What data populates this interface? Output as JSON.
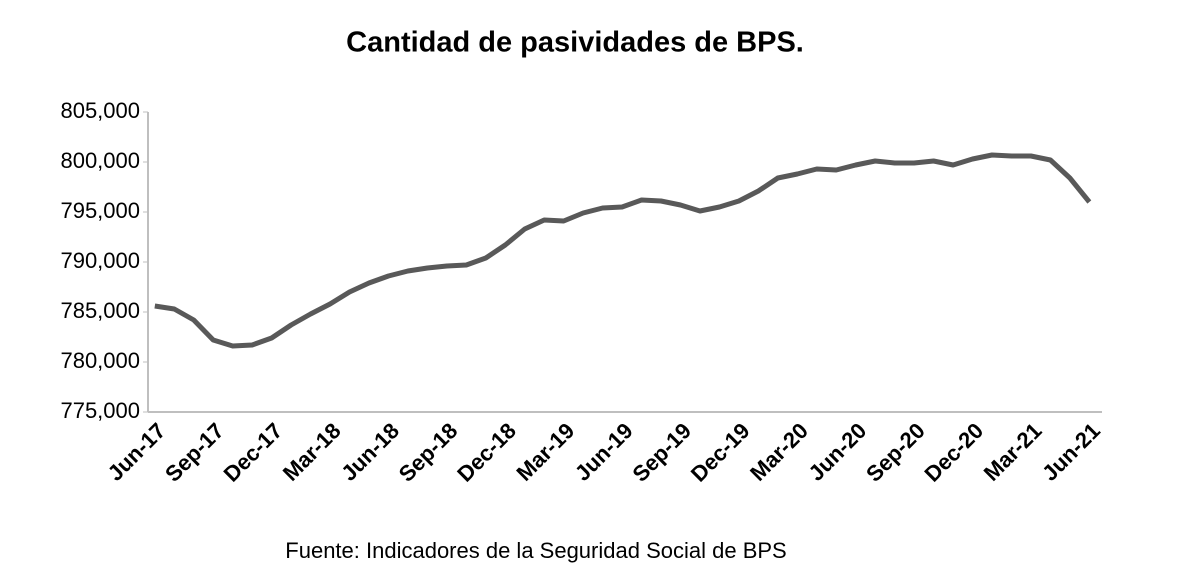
{
  "chart_data": {
    "type": "line",
    "title": "Cantidad de pasividades de BPS.",
    "source": "Fuente: Indicadores de la Seguridad Social de BPS",
    "categories": [
      "Jun-17",
      null,
      null,
      "Sep-17",
      null,
      null,
      "Dec-17",
      null,
      null,
      "Mar-18",
      null,
      null,
      "Jun-18",
      null,
      null,
      "Sep-18",
      null,
      null,
      "Dec-18",
      null,
      null,
      "Mar-19",
      null,
      null,
      "Jun-19",
      null,
      null,
      "Sep-19",
      null,
      null,
      "Dec-19",
      null,
      null,
      "Mar-20",
      null,
      null,
      "Jun-20",
      null,
      null,
      "Sep-20",
      null,
      null,
      "Dec-20",
      null,
      null,
      "Mar-21",
      null,
      null,
      "Jun-21"
    ],
    "series": [
      {
        "name": "Cantidad de pasividades",
        "color": "#595959",
        "values": [
          785600,
          785300,
          784200,
          782200,
          781600,
          781700,
          782400,
          783700,
          784800,
          785800,
          787000,
          787900,
          788600,
          789100,
          789400,
          789600,
          789700,
          790400,
          791700,
          793300,
          794200,
          794100,
          794900,
          795400,
          795500,
          796200,
          796100,
          795700,
          795100,
          795500,
          796100,
          797100,
          798400,
          798800,
          799300,
          799200,
          799700,
          800100,
          799900,
          799900,
          800100,
          799700,
          800300,
          800700,
          800600,
          800600,
          800200,
          798400,
          796000
        ]
      }
    ],
    "ylim": [
      775000,
      805000
    ],
    "yticks": [
      {
        "value": 775000,
        "label": "775,000"
      },
      {
        "value": 780000,
        "label": "780,000"
      },
      {
        "value": 785000,
        "label": "785,000"
      },
      {
        "value": 790000,
        "label": "790,000"
      },
      {
        "value": 795000,
        "label": "795,000"
      },
      {
        "value": 800000,
        "label": "800,000"
      },
      {
        "value": 805000,
        "label": "805,000"
      }
    ],
    "grid": false
  }
}
